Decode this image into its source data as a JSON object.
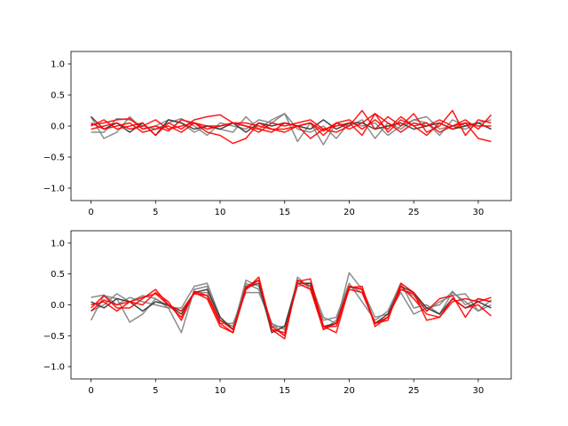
{
  "chart_data": [
    {
      "type": "line",
      "x": [
        0,
        1,
        2,
        3,
        4,
        5,
        6,
        7,
        8,
        9,
        10,
        11,
        12,
        13,
        14,
        15,
        16,
        17,
        18,
        19,
        20,
        21,
        22,
        23,
        24,
        25,
        26,
        27,
        28,
        29,
        30,
        31
      ],
      "xlim": [
        -1.55,
        32.55
      ],
      "ylim": [
        -1.2,
        1.2
      ],
      "xticks": [
        0,
        5,
        10,
        15,
        20,
        25,
        30
      ],
      "yticks": [
        -1.0,
        -0.5,
        0.0,
        0.5,
        1.0
      ],
      "xticklabels": [
        "0",
        "5",
        "10",
        "15",
        "20",
        "25",
        "30"
      ],
      "yticklabels": [
        "−1.0",
        "−0.5",
        "0.0",
        "0.5",
        "1.0"
      ],
      "grid": false,
      "series": [
        {
          "color": "#808080",
          "values": [
            0.15,
            -0.2,
            -0.1,
            0.15,
            -0.05,
            0.0,
            0.1,
            0.05,
            -0.1,
            0.0,
            -0.05,
            -0.1,
            0.15,
            -0.05,
            0.1,
            0.2,
            -0.25,
            0.05,
            -0.3,
            0.05,
            0.0,
            0.1,
            -0.2,
            0.05,
            -0.05,
            0.1,
            0.05,
            -0.15,
            0.1,
            0.0,
            0.05,
            -0.05
          ]
        },
        {
          "color": "#808080",
          "values": [
            -0.1,
            -0.1,
            0.12,
            0.1,
            0.0,
            -0.05,
            0.05,
            0.12,
            0.0,
            -0.15,
            0.05,
            0.0,
            -0.05,
            0.1,
            0.05,
            0.2,
            -0.05,
            -0.1,
            0.0,
            -0.2,
            0.05,
            0.0,
            0.05,
            -0.15,
            0.0,
            0.1,
            0.15,
            -0.05,
            0.0,
            -0.05,
            0.05,
            0.1
          ]
        },
        {
          "color": "#333333",
          "values": [
            0.15,
            -0.05,
            0.05,
            -0.1,
            0.05,
            -0.15,
            0.1,
            0.05,
            -0.05,
            0.0,
            -0.05,
            0.05,
            -0.1,
            0.05,
            0.0,
            0.05,
            0.0,
            -0.05,
            0.1,
            -0.05,
            0.05,
            0.05,
            -0.05,
            0.0,
            0.05,
            -0.05,
            0.0,
            0.05,
            -0.05,
            0.0,
            0.05,
            -0.05
          ]
        },
        {
          "color": "#ff0000",
          "values": [
            0.05,
            -0.05,
            0.0,
            0.05,
            -0.1,
            -0.05,
            0.0,
            -0.1,
            0.05,
            -0.1,
            -0.15,
            -0.28,
            -0.2,
            0.05,
            -0.05,
            -0.1,
            0.0,
            -0.2,
            -0.05,
            0.0,
            0.05,
            -0.15,
            0.2,
            -0.1,
            0.1,
            0.0,
            -0.15,
            0.05,
            -0.05,
            0.05,
            -0.2,
            -0.25
          ]
        },
        {
          "color": "#ff0000",
          "values": [
            0.0,
            0.1,
            -0.05,
            0.0,
            0.05,
            -0.15,
            0.05,
            -0.05,
            0.1,
            0.15,
            0.18,
            0.05,
            0.0,
            -0.1,
            0.05,
            0.0,
            0.05,
            0.1,
            -0.05,
            -0.1,
            0.0,
            0.25,
            -0.05,
            0.15,
            0.0,
            0.2,
            -0.1,
            0.0,
            0.25,
            -0.15,
            0.1,
            0.05
          ]
        },
        {
          "color": "#ff0000",
          "values": [
            -0.05,
            0.0,
            0.05,
            -0.05,
            0.0,
            0.1,
            -0.05,
            0.0,
            0.05,
            -0.05,
            0.0,
            0.05,
            0.0,
            -0.05,
            -0.1,
            0.05,
            0.0,
            0.05,
            -0.15,
            0.05,
            0.1,
            -0.05,
            0.1,
            -0.05,
            0.15,
            0.0,
            0.05,
            -0.1,
            0.0,
            0.1,
            -0.05,
            0.18
          ]
        },
        {
          "color": "#ff0000",
          "values": [
            0.02,
            0.05,
            0.1,
            0.12,
            -0.05,
            0.0,
            -0.08,
            0.1,
            0.05,
            0.0,
            0.0,
            0.05,
            0.05,
            0.0,
            -0.05,
            -0.05,
            0.0,
            0.05,
            -0.08,
            0.05,
            -0.05,
            0.05,
            0.2,
            0.05,
            -0.1,
            0.05,
            0.0,
            0.1,
            0.0,
            0.05,
            0.0,
            0.0
          ]
        }
      ]
    },
    {
      "type": "line",
      "x": [
        0,
        1,
        2,
        3,
        4,
        5,
        6,
        7,
        8,
        9,
        10,
        11,
        12,
        13,
        14,
        15,
        16,
        17,
        18,
        19,
        20,
        21,
        22,
        23,
        24,
        25,
        26,
        27,
        28,
        29,
        30,
        31
      ],
      "xlim": [
        -1.55,
        32.55
      ],
      "ylim": [
        -1.2,
        1.2
      ],
      "xticks": [
        0,
        5,
        10,
        15,
        20,
        25,
        30
      ],
      "yticks": [
        -1.0,
        -0.5,
        0.0,
        0.5,
        1.0
      ],
      "xticklabels": [
        "0",
        "5",
        "10",
        "15",
        "20",
        "25",
        "30"
      ],
      "yticklabels": [
        "−1.0",
        "−0.5",
        "0.0",
        "0.5",
        "1.0"
      ],
      "grid": false,
      "series": [
        {
          "color": "#808080",
          "values": [
            0.12,
            0.16,
            0.0,
            0.12,
            0.05,
            0.0,
            -0.05,
            -0.05,
            0.3,
            0.35,
            -0.2,
            -0.4,
            0.4,
            0.3,
            -0.3,
            -0.4,
            0.3,
            0.35,
            -0.2,
            -0.3,
            0.52,
            0.25,
            -0.2,
            -0.15,
            0.2,
            -0.15,
            -0.05,
            0.0,
            0.22,
            0.0,
            0.1,
            0.05
          ]
        },
        {
          "color": "#808080",
          "values": [
            -0.25,
            0.15,
            0.1,
            -0.28,
            -0.15,
            0.1,
            -0.05,
            -0.45,
            0.25,
            0.3,
            -0.3,
            -0.3,
            0.2,
            0.2,
            -0.3,
            -0.5,
            0.45,
            0.25,
            -0.25,
            -0.2,
            0.35,
            0.05,
            -0.25,
            -0.1,
            0.35,
            -0.05,
            0.0,
            -0.15,
            0.2,
            0.05,
            -0.1,
            0.0
          ]
        },
        {
          "color": "#808080",
          "values": [
            -0.1,
            0.0,
            0.18,
            0.05,
            0.15,
            0.1,
            -0.02,
            -0.1,
            0.2,
            0.2,
            -0.25,
            -0.35,
            0.35,
            0.25,
            -0.35,
            -0.35,
            0.4,
            0.3,
            -0.4,
            -0.25,
            0.3,
            0.2,
            -0.3,
            -0.2,
            0.25,
            0.15,
            -0.1,
            0.05,
            0.15,
            0.18,
            -0.1,
            0.08
          ]
        },
        {
          "color": "#333333",
          "values": [
            0.05,
            -0.05,
            0.1,
            0.05,
            -0.1,
            0.05,
            0.0,
            -0.15,
            0.2,
            0.25,
            -0.2,
            -0.4,
            0.28,
            0.35,
            -0.45,
            -0.35,
            0.35,
            0.35,
            -0.35,
            -0.3,
            0.3,
            0.25,
            -0.3,
            -0.15,
            0.3,
            0.2,
            -0.05,
            -0.15,
            0.1,
            -0.05,
            0.05,
            -0.05
          ]
        },
        {
          "color": "#ff0000",
          "values": [
            -0.05,
            0.15,
            -0.05,
            -0.05,
            0.1,
            0.25,
            0.0,
            -0.2,
            0.2,
            0.1,
            -0.35,
            -0.45,
            0.25,
            0.45,
            -0.4,
            -0.55,
            0.4,
            0.3,
            -0.35,
            -0.35,
            0.25,
            0.2,
            -0.3,
            -0.25,
            0.35,
            0.2,
            -0.25,
            -0.2,
            0.1,
            -0.05,
            0.0,
            -0.18
          ]
        },
        {
          "color": "#ff0000",
          "values": [
            0.0,
            0.05,
            -0.1,
            0.05,
            0.12,
            0.18,
            0.0,
            -0.1,
            0.18,
            0.15,
            -0.25,
            -0.4,
            0.25,
            0.4,
            -0.4,
            -0.45,
            0.35,
            0.25,
            -0.4,
            -0.3,
            0.3,
            0.25,
            -0.3,
            -0.2,
            0.25,
            0.18,
            -0.1,
            0.1,
            0.15,
            -0.2,
            0.1,
            0.05
          ]
        },
        {
          "color": "#ff0000",
          "values": [
            -0.1,
            0.08,
            0.0,
            0.05,
            0.0,
            0.2,
            0.05,
            -0.25,
            0.22,
            0.15,
            -0.3,
            -0.45,
            0.3,
            0.4,
            -0.35,
            -0.5,
            0.38,
            0.42,
            -0.35,
            -0.45,
            0.28,
            0.3,
            -0.35,
            -0.2,
            0.3,
            0.1,
            -0.15,
            -0.2,
            0.05,
            0.1,
            0.05,
            0.12
          ]
        }
      ]
    }
  ]
}
